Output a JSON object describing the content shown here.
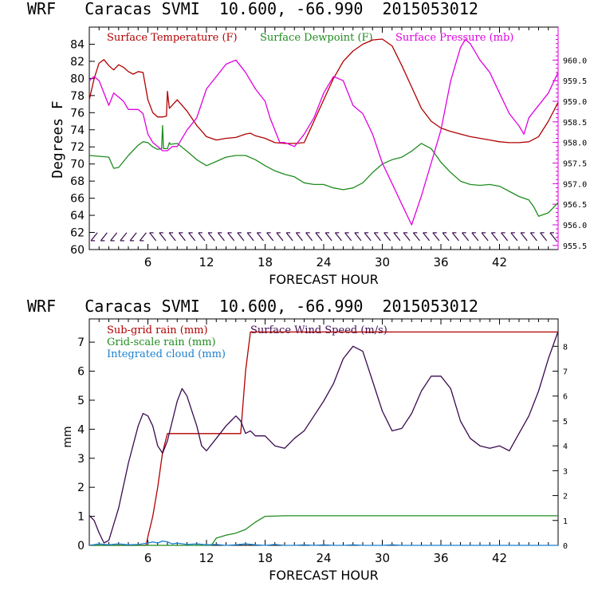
{
  "chart_data": [
    {
      "type": "line",
      "header": "WRF   Caracas SVMI  10.600, -66.990  2015053012",
      "xlabel": "FORECAST HOUR",
      "ylabel": "Degrees F",
      "xlim": [
        0,
        48
      ],
      "ylim": [
        60,
        86
      ],
      "y2lim": [
        955.4,
        960.8
      ],
      "x_ticks": [
        6,
        12,
        18,
        24,
        30,
        36,
        42
      ],
      "y_ticks": [
        60,
        62,
        64,
        66,
        68,
        70,
        72,
        74,
        76,
        78,
        80,
        82,
        84
      ],
      "y2_ticks": [
        "955.5",
        "956.0",
        "956.5",
        "957.0",
        "957.5",
        "958.0",
        "958.5",
        "959.0",
        "959.5",
        "960.0"
      ],
      "legend": [
        "Surface Temperature (F)",
        "Surface Dewpoint (F)",
        "Surface Pressure (mb)"
      ],
      "colors": {
        "temp": "#b00000",
        "dew": "#1e8c1e",
        "pres": "#e000e0",
        "wind": "#3a0a50",
        "axis": "#000000"
      },
      "series": [
        {
          "name": "Surface Temperature (F)",
          "axis": "left",
          "x": [
            0,
            0.5,
            1,
            1.5,
            2,
            2.5,
            3,
            3.5,
            4,
            4.5,
            5,
            5.5,
            6,
            6.5,
            7,
            7.5,
            7.9,
            8.0,
            8.2,
            9,
            10,
            11,
            12,
            13,
            14,
            15,
            16,
            16.5,
            17,
            18,
            19,
            20,
            21,
            22,
            23,
            24,
            25,
            26,
            27,
            28,
            29,
            30,
            31,
            32,
            33,
            34,
            35,
            36,
            37,
            38,
            39,
            40,
            41,
            42,
            43,
            44,
            45,
            46,
            47,
            48
          ],
          "values": [
            77.5,
            80,
            81.8,
            82.2,
            81.5,
            81,
            81.6,
            81.3,
            80.8,
            80.5,
            80.8,
            80.7,
            77.5,
            76,
            75.5,
            75.5,
            75.6,
            78.5,
            76.5,
            77.5,
            76.2,
            74.5,
            73.2,
            72.8,
            73.0,
            73.1,
            73.5,
            73.6,
            73.3,
            73.0,
            72.5,
            72.4,
            72.4,
            72.5,
            75.0,
            77.5,
            80.0,
            82.0,
            83.2,
            84.0,
            84.5,
            84.6,
            83.8,
            81.5,
            79.0,
            76.5,
            75.0,
            74.2,
            73.8,
            73.5,
            73.2,
            73.0,
            72.8,
            72.6,
            72.5,
            72.5,
            72.6,
            73.2,
            75.0,
            77.2
          ]
        },
        {
          "name": "Surface Dewpoint (F)",
          "axis": "left",
          "x": [
            0,
            1,
            2,
            2.5,
            3,
            4,
            5,
            5.5,
            6,
            6.5,
            7,
            7.4,
            7.5,
            7.6,
            8,
            8.2,
            8.3,
            9,
            10,
            11,
            12,
            13,
            14,
            15,
            16,
            17,
            18,
            19,
            20,
            21,
            22,
            23,
            24,
            25,
            26,
            27,
            28,
            29,
            30,
            31,
            32,
            33,
            34,
            35,
            36,
            37,
            38,
            39,
            40,
            41,
            42,
            43,
            44,
            45,
            45.5,
            46,
            47,
            48
          ],
          "values": [
            71,
            70.9,
            70.8,
            69.5,
            69.6,
            71,
            72.2,
            72.6,
            72.5,
            72.0,
            71.7,
            71.8,
            74.5,
            71.8,
            71.8,
            72.5,
            72.3,
            72.4,
            71.5,
            70.5,
            69.8,
            70.3,
            70.8,
            71.0,
            71.0,
            70.5,
            69.8,
            69.2,
            68.8,
            68.5,
            67.8,
            67.6,
            67.6,
            67.2,
            67.0,
            67.2,
            67.8,
            69.0,
            70.0,
            70.5,
            70.8,
            71.5,
            72.4,
            71.8,
            70.2,
            69.0,
            68.0,
            67.6,
            67.5,
            67.6,
            67.4,
            66.8,
            66.2,
            65.8,
            65.0,
            63.9,
            64.3,
            65.5
          ]
        },
        {
          "name": "Surface Pressure (mb)",
          "axis": "right",
          "x": [
            0,
            0.5,
            1,
            1.5,
            2,
            2.5,
            3,
            3.5,
            4,
            5,
            5.5,
            6,
            6.5,
            7,
            7.5,
            8,
            8.5,
            9,
            10,
            11,
            12,
            13,
            14,
            15,
            16,
            17,
            18,
            18.5,
            19,
            19.5,
            20,
            21,
            22,
            23,
            24,
            25,
            26,
            27,
            28,
            29,
            30,
            31,
            32,
            33,
            34,
            35,
            36,
            37,
            38,
            38.5,
            39,
            40,
            41,
            42,
            43,
            44,
            44.5,
            45,
            46,
            47,
            48
          ],
          "values": [
            959.5,
            959.6,
            959.5,
            959.2,
            958.9,
            959.2,
            959.1,
            959.0,
            958.8,
            958.8,
            958.7,
            958.2,
            958.0,
            957.9,
            957.8,
            957.8,
            957.9,
            957.9,
            958.3,
            958.6,
            959.3,
            959.6,
            959.9,
            960.0,
            959.7,
            959.3,
            959.0,
            958.6,
            958.3,
            958.0,
            958.0,
            957.9,
            958.2,
            958.6,
            959.2,
            959.6,
            959.5,
            958.9,
            958.7,
            958.2,
            957.5,
            957.0,
            956.5,
            956.0,
            956.7,
            957.5,
            958.3,
            959.5,
            960.3,
            960.5,
            960.4,
            960.0,
            959.7,
            959.2,
            958.7,
            958.4,
            958.2,
            958.6,
            958.9,
            959.2,
            959.7
          ]
        },
        {
          "name": "wind barbs",
          "axis": "left",
          "x": [
            0.5,
            1.5,
            2.5,
            3.5,
            4.5,
            5.5,
            6.5,
            7.5,
            8.5,
            9.5,
            10.5,
            11.5,
            12.5,
            13.5,
            14.5,
            15.5,
            16.5,
            17.5,
            18.5,
            19.5,
            20.5,
            21.5,
            22.5,
            23.5,
            24.5,
            25.5,
            26.5,
            27.5,
            28.5,
            29.5,
            30.5,
            31.5,
            32.5,
            33.5,
            34.5,
            35.5,
            36.5,
            37.5,
            38.5,
            39.5,
            40.5,
            41.5,
            42.5,
            43.5,
            44.5,
            45.5,
            46.5,
            47.5
          ],
          "values": [
            61.5,
            61.5,
            61.5,
            61.5,
            61.5,
            61.5,
            61.5,
            61.5,
            61.5,
            61.5,
            61.5,
            61.5,
            61.5,
            61.5,
            61.5,
            61.5,
            61.5,
            61.5,
            61.5,
            61.5,
            61.5,
            61.5,
            61.5,
            61.5,
            61.5,
            61.5,
            61.5,
            61.5,
            61.5,
            61.5,
            61.5,
            61.5,
            61.5,
            61.5,
            61.5,
            61.5,
            61.5,
            61.5,
            61.5,
            61.5,
            61.5,
            61.5,
            61.5,
            61.5,
            61.5,
            61.5,
            61.5,
            61.5
          ]
        }
      ]
    },
    {
      "type": "line",
      "header": "WRF   Caracas SVMI  10.600, -66.990  2015053012",
      "xlabel": "FORECAST HOUR",
      "ylabel": "mm",
      "xlim": [
        0,
        48
      ],
      "ylim": [
        0,
        7.8
      ],
      "y2lim": [
        0,
        9.1
      ],
      "x_ticks": [
        6,
        12,
        18,
        24,
        30,
        36,
        42
      ],
      "y_ticks": [
        0,
        1,
        2,
        3,
        4,
        5,
        6,
        7
      ],
      "y2_ticks": [
        0,
        1,
        2,
        3,
        4,
        5,
        6,
        7,
        8
      ],
      "legend": [
        "Sub-grid rain (mm)",
        "Surface Wind Speed (m/s)",
        "Grid-scale rain (mm)",
        "Integrated cloud (mm)"
      ],
      "colors": {
        "subgrid": "#b00000",
        "wind": "#3a0a50",
        "grid": "#1e8c1e",
        "cloud": "#1a7fd0",
        "axis": "#000000"
      },
      "series": [
        {
          "name": "Sub-grid rain (mm)",
          "axis": "left",
          "x": [
            0,
            5.8,
            6,
            6.5,
            7,
            7.5,
            8,
            9,
            10,
            11,
            12,
            13,
            14,
            15,
            15.5,
            16,
            16.5,
            20,
            24,
            30,
            36,
            42,
            48
          ],
          "values": [
            0,
            0,
            0.3,
            1.0,
            2.0,
            3.2,
            3.85,
            3.85,
            3.85,
            3.85,
            3.85,
            3.85,
            3.85,
            3.85,
            3.85,
            6.0,
            7.35,
            7.35,
            7.35,
            7.35,
            7.35,
            7.35,
            7.35
          ]
        },
        {
          "name": "Surface Wind Speed (m/s)",
          "axis": "right",
          "x": [
            0,
            0.5,
            1,
            1.5,
            2,
            3,
            4,
            5,
            5.5,
            6,
            6.5,
            7,
            7.5,
            8,
            9,
            9.5,
            10,
            11,
            11.5,
            12,
            13,
            14,
            14.5,
            15,
            15.5,
            16,
            16.5,
            17,
            18,
            18.5,
            19,
            20,
            21,
            22,
            23,
            24,
            25,
            26,
            27,
            28,
            29,
            30,
            31,
            32,
            33,
            34,
            35,
            36,
            37,
            38,
            39,
            40,
            41,
            42,
            43,
            44,
            45,
            46,
            47,
            48
          ],
          "values": [
            1.2,
            1.0,
            0.5,
            0.1,
            0.2,
            1.5,
            3.3,
            4.8,
            5.3,
            5.2,
            4.8,
            4.0,
            3.7,
            4.2,
            5.8,
            6.3,
            6.0,
            4.8,
            4.0,
            3.8,
            4.3,
            4.8,
            5.0,
            5.2,
            5.0,
            4.5,
            4.6,
            4.4,
            4.4,
            4.2,
            4.0,
            3.9,
            4.3,
            4.6,
            5.2,
            5.8,
            6.5,
            7.5,
            8.0,
            7.8,
            6.6,
            5.4,
            4.6,
            4.7,
            5.3,
            6.2,
            6.8,
            6.8,
            6.3,
            5.0,
            4.3,
            4.0,
            3.9,
            4.0,
            3.8,
            4.5,
            5.2,
            6.2,
            7.5,
            8.6
          ]
        },
        {
          "name": "Grid-scale rain (mm)",
          "axis": "left",
          "x": [
            0,
            12.5,
            13,
            14,
            15,
            16,
            17,
            18,
            20,
            24,
            30,
            36,
            42,
            48
          ],
          "values": [
            0,
            0,
            0.25,
            0.35,
            0.42,
            0.55,
            0.8,
            1.0,
            1.02,
            1.02,
            1.02,
            1.02,
            1.02,
            1.02
          ]
        },
        {
          "name": "Integrated cloud (mm)",
          "axis": "left",
          "x": [
            0,
            1,
            2,
            3,
            4,
            5,
            6,
            6.5,
            7,
            7.5,
            8,
            8.5,
            9,
            10,
            11,
            12,
            13,
            14,
            15,
            16,
            17,
            18,
            19,
            20,
            21,
            22,
            23,
            24,
            25,
            26,
            27,
            28,
            29,
            30,
            31,
            32,
            33,
            34,
            35,
            36,
            37,
            38,
            39,
            40,
            41,
            42,
            43,
            44,
            45,
            46,
            47,
            48
          ],
          "values": [
            0.0,
            0.05,
            0.02,
            0.05,
            0.02,
            0.03,
            0.08,
            0.12,
            0.08,
            0.15,
            0.12,
            0.05,
            0.08,
            0.03,
            0.05,
            0.02,
            0.03,
            0.0,
            0.02,
            0.05,
            0.02,
            0.0,
            0.03,
            0.0,
            0.0,
            0.02,
            0.0,
            0.02,
            0.0,
            0.0,
            0.02,
            0.0,
            0.0,
            0.0,
            0.02,
            0.0,
            0.0,
            0.0,
            0.0,
            0.0,
            0.0,
            0.0,
            0.0,
            0.0,
            0.0,
            0.0,
            0.0,
            0.0,
            0.0,
            0.0,
            0.0,
            0.0
          ]
        }
      ]
    }
  ]
}
